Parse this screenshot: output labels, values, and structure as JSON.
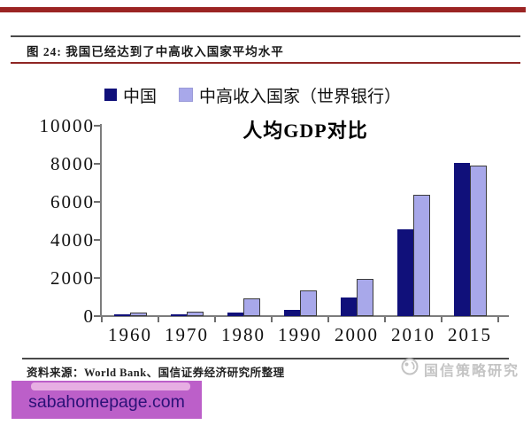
{
  "page": {
    "figure_label": "图 24:",
    "figure_title": "我国已经达到了中高收入国家平均水平",
    "source_text": "资料来源：World Bank、国信证券经济研究所整理",
    "brand_text": "国信策略研究",
    "watermark_text": "sabahomepage.com"
  },
  "colors": {
    "top_bar": "#9b2423",
    "rule_dark": "#4a4a4a",
    "rule_red": "#8f2624",
    "china_bar": "#10107a",
    "umc_bar": "#a8a8ea",
    "axis_gray": "#7d7d7d",
    "brand_gray": "#c4c4c4",
    "watermark_bg": "#bc5fc9",
    "watermark_text": "#2b1177"
  },
  "chart_data": {
    "type": "bar",
    "title": "人均GDP对比",
    "categories": [
      "1960",
      "1970",
      "1980",
      "1990",
      "2000",
      "2010",
      "2015"
    ],
    "series": [
      {
        "name": "中国",
        "color": "#10107a",
        "values": [
          90,
          113,
          195,
          318,
          959,
          4560,
          8069
        ]
      },
      {
        "name": "中高收入国家（世界银行）",
        "color": "#a8a8ea",
        "values": [
          185,
          235,
          940,
          1345,
          1970,
          6350,
          7915
        ]
      }
    ],
    "xlabel": "",
    "ylabel": "",
    "ylim": [
      0,
      10000
    ],
    "yticks": [
      0,
      2000,
      4000,
      6000,
      8000,
      10000
    ],
    "grid": false,
    "legend_position": "top-center"
  }
}
